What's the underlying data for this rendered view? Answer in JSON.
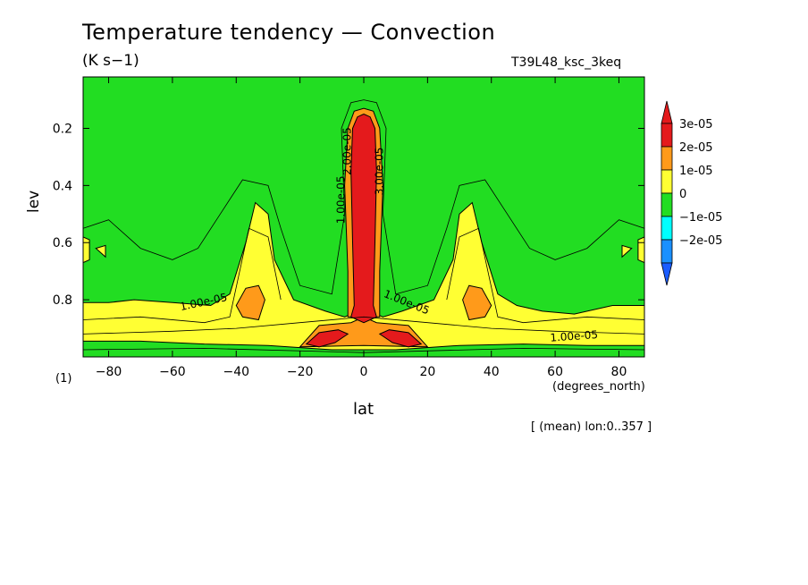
{
  "title": "Temperature tendency — Convection",
  "units": "(K s−1)",
  "run_label": "T39L48_ksc_3keq",
  "averaging_note": "[ (mean) lon:0..357 ]",
  "chart_data": {
    "type": "heatmap",
    "xlabel": "lat",
    "xunits": "(degrees_north)",
    "ylabel": "lev",
    "yunits": "(1)",
    "xlim": [
      -88,
      88
    ],
    "ylim": [
      1.0,
      0.02
    ],
    "xticks": [
      -80,
      -60,
      -40,
      -20,
      0,
      20,
      40,
      60,
      80
    ],
    "xtick_labels": [
      "−80",
      "−60",
      "−40",
      "−20",
      "0",
      "20",
      "40",
      "60",
      "80"
    ],
    "yticks": [
      0.2,
      0.4,
      0.6,
      0.8
    ],
    "ytick_labels": [
      "0.2",
      "0.4",
      "0.6",
      "0.8"
    ],
    "colorbar": {
      "levels": [
        {
          "label": "3e-05",
          "color": "#e41a1c"
        },
        {
          "label": "2e-05",
          "color": "#ff9a1a"
        },
        {
          "label": "1e-05",
          "color": "#ffff33"
        },
        {
          "label": "0",
          "color": "#22dd22"
        },
        {
          "label": "−1e-05",
          "color": "#00ffff"
        },
        {
          "label": "−2e-05",
          "color": "#1a90ff"
        }
      ],
      "top_triangle_color": "#e41a1c",
      "bottom_triangle_color": "#1a5cff"
    },
    "background_color": "#22dd22",
    "contour_labels": [
      {
        "text": "1.00e-05",
        "lat": -50,
        "lev": 0.82,
        "angle": -12
      },
      {
        "text": "1.00e-05",
        "lat": 13,
        "lev": 0.82,
        "angle": 22
      },
      {
        "text": "1.00e-05",
        "lat": 66,
        "lev": 0.94,
        "angle": -4
      },
      {
        "text": "3.00e-05",
        "lat": 6,
        "lev": 0.35,
        "angle": -90
      },
      {
        "text": "1.00e-05",
        "lat": -6,
        "lev": 0.45,
        "angle": -90
      },
      {
        "text": "2.00e-05",
        "lat": -4,
        "lev": 0.28,
        "angle": -90
      }
    ],
    "regions": [
      {
        "name": "yellow-equatorial-band",
        "value_range": "1e-05 to 2e-05",
        "lat_span": [
          -88,
          88
        ],
        "lev_span": [
          0.82,
          0.96
        ]
      },
      {
        "name": "yellow-plume-south",
        "value_range": "1e-05 to 2e-05",
        "lat_center": -34,
        "lev_span": [
          0.46,
          0.85
        ]
      },
      {
        "name": "yellow-plume-north",
        "value_range": "1e-05 to 2e-05",
        "lat_center": 34,
        "lev_span": [
          0.46,
          0.85
        ]
      },
      {
        "name": "orange-core-south",
        "value_range": "2e-05 to 3e-05",
        "lat_center": -34,
        "lev_center": 0.82
      },
      {
        "name": "orange-core-north",
        "value_range": "2e-05 to 3e-05",
        "lat_center": 34,
        "lev_center": 0.82
      },
      {
        "name": "red-equatorial-column",
        "value_range": "> 3e-05",
        "lat_center": 0,
        "lev_span": [
          0.13,
          0.88
        ]
      },
      {
        "name": "red-lobe-south",
        "value_range": "> 3e-05",
        "lat_center": -12,
        "lev_center": 0.93
      },
      {
        "name": "red-lobe-north",
        "value_range": "> 3e-05",
        "lat_center": 12,
        "lev_center": 0.93
      }
    ]
  }
}
